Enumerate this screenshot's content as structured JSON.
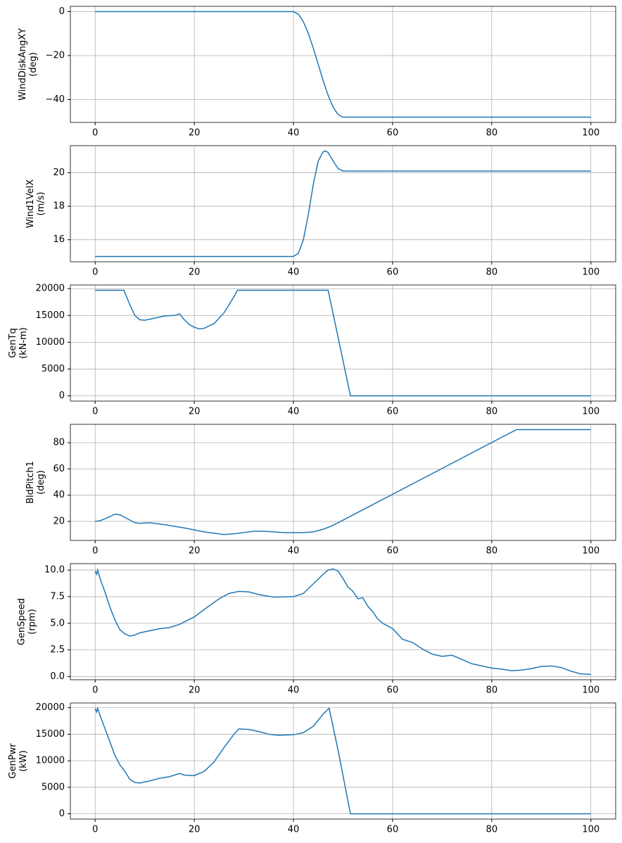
{
  "chart_data": [
    {
      "type": "line",
      "ylabel": [
        "WindDiskAngXY",
        "(deg)"
      ],
      "grid": true,
      "xlim": [
        -5,
        105
      ],
      "xticks": [
        0,
        20,
        40,
        60,
        80,
        100
      ],
      "ylim": [
        -50.4,
        2.4
      ],
      "yticks": [
        {
          "value": -40,
          "label": "−40"
        },
        {
          "value": -20,
          "label": "−20"
        },
        0
      ],
      "series": [
        {
          "color": "#1f77b4",
          "x": [
            0,
            40,
            41,
            42,
            43,
            44,
            45,
            46,
            47,
            48,
            49,
            50,
            100
          ],
          "values": [
            0,
            0,
            -1.17,
            -4.58,
            -9.89,
            -16.58,
            -24,
            -31.42,
            -38.11,
            -43.42,
            -46.83,
            -48,
            -48
          ]
        }
      ]
    },
    {
      "type": "line",
      "ylabel": [
        "Wind1VelX",
        "(m/s)"
      ],
      "grid": true,
      "xlim": [
        -5,
        105
      ],
      "xticks": [
        0,
        20,
        40,
        60,
        80,
        100
      ],
      "ylim": [
        14.685,
        21.615
      ],
      "yticks": [
        16,
        18,
        20
      ],
      "series": [
        {
          "color": "#1f77b4",
          "x": [
            0,
            40,
            41,
            42,
            43,
            44,
            45,
            46,
            46.5,
            47,
            48,
            49,
            50,
            100
          ],
          "values": [
            15,
            15,
            15.2,
            16,
            17.5,
            19.3,
            20.7,
            21.25,
            21.3,
            21.2,
            20.7,
            20.25,
            20.1,
            20.1
          ]
        }
      ]
    },
    {
      "type": "line",
      "ylabel": [
        "GenTq",
        "(kN-m)"
      ],
      "grid": true,
      "xlim": [
        -5,
        105
      ],
      "xticks": [
        0,
        20,
        40,
        60,
        80,
        100
      ],
      "ylim": [
        -985,
        20685
      ],
      "yticks": [
        0,
        5000,
        10000,
        15000,
        20000
      ],
      "series": [
        {
          "color": "#1f77b4",
          "x": [
            0,
            5.8,
            7,
            8,
            9,
            10,
            12,
            14,
            16,
            17,
            18,
            19,
            20,
            21,
            22,
            24,
            26,
            28,
            28.7,
            47,
            51.5,
            100
          ],
          "values": [
            19700,
            19700,
            17000,
            15000,
            14200,
            14100,
            14500,
            14900,
            15000,
            15300,
            14200,
            13300,
            12800,
            12500,
            12600,
            13500,
            15500,
            18500,
            19700,
            19700,
            0,
            0
          ]
        }
      ]
    },
    {
      "type": "line",
      "ylabel": [
        "BldPitch1",
        "(deg)"
      ],
      "grid": true,
      "xlim": [
        -5,
        105
      ],
      "xticks": [
        0,
        20,
        40,
        60,
        80,
        100
      ],
      "ylim": [
        5.5,
        94
      ],
      "yticks": [
        20,
        40,
        60,
        80
      ],
      "series": [
        {
          "color": "#1f77b4",
          "x": [
            0,
            1,
            2,
            4,
            5,
            6,
            8,
            9,
            11,
            14,
            18,
            22,
            26,
            28,
            30,
            32,
            34,
            36,
            38,
            42,
            44,
            46,
            48,
            85,
            100
          ],
          "values": [
            20,
            20.5,
            22,
            25.5,
            25,
            23,
            19,
            18.5,
            19,
            17.5,
            15,
            12,
            10,
            10.5,
            11.5,
            12.5,
            12.5,
            12,
            11.5,
            11.5,
            12,
            14,
            17,
            90,
            90
          ]
        }
      ]
    },
    {
      "type": "line",
      "ylabel": [
        "GenSpeed",
        "(rpm)"
      ],
      "grid": true,
      "xlim": [
        -5,
        105
      ],
      "xticks": [
        0,
        20,
        40,
        60,
        80,
        100
      ],
      "ylim": [
        -0.3,
        10.6
      ],
      "yticks": [
        {
          "value": 0,
          "label": "0.0"
        },
        2.5,
        {
          "value": 5,
          "label": "5.0"
        },
        7.5,
        {
          "value": 10,
          "label": "10.0"
        }
      ],
      "series": [
        {
          "color": "#1f77b4",
          "x": [
            0,
            0.3,
            0.5,
            1,
            2,
            3,
            4,
            5,
            6,
            7,
            8,
            9,
            11,
            13,
            15,
            17,
            20,
            22,
            25,
            27,
            29,
            31,
            33,
            36,
            40,
            42,
            44,
            46,
            47,
            48,
            49,
            50,
            51,
            52,
            53,
            54,
            55,
            56,
            57,
            58,
            60,
            61,
            62,
            64,
            66,
            68,
            70,
            72,
            74,
            76,
            78,
            80,
            82,
            84,
            86,
            88,
            90,
            92,
            94,
            96,
            98,
            100
          ],
          "values": [
            9.9,
            9.6,
            10,
            9.2,
            7.9,
            6.5,
            5.3,
            4.4,
            4.0,
            3.8,
            3.9,
            4.1,
            4.3,
            4.5,
            4.6,
            4.9,
            5.6,
            6.3,
            7.3,
            7.8,
            8.0,
            7.95,
            7.7,
            7.45,
            7.5,
            7.8,
            8.7,
            9.6,
            10.0,
            10.1,
            9.9,
            9.2,
            8.4,
            8.0,
            7.3,
            7.4,
            6.6,
            6.1,
            5.4,
            5.0,
            4.5,
            4.0,
            3.5,
            3.2,
            2.6,
            2.1,
            1.9,
            2.0,
            1.6,
            1.2,
            1.0,
            0.8,
            0.7,
            0.55,
            0.6,
            0.75,
            0.95,
            1.0,
            0.85,
            0.5,
            0.25,
            0.2
          ]
        }
      ]
    },
    {
      "type": "line",
      "ylabel": [
        "GenPwr",
        "(kW)"
      ],
      "grid": true,
      "xlim": [
        -5,
        105
      ],
      "xticks": [
        0,
        20,
        40,
        60,
        80,
        100
      ],
      "ylim": [
        -995,
        20895
      ],
      "yticks": [
        0,
        5000,
        10000,
        15000,
        20000
      ],
      "series": [
        {
          "color": "#1f77b4",
          "x": [
            0,
            0.3,
            0.5,
            1,
            2,
            3,
            4,
            5,
            6,
            7,
            8,
            9,
            11,
            13,
            15,
            17,
            18,
            20,
            22,
            24,
            26,
            28,
            29,
            31,
            33,
            35,
            37,
            40,
            42,
            44,
            46,
            47.2,
            49,
            51.5,
            100
          ],
          "values": [
            19800,
            19200,
            19900,
            18500,
            16000,
            13500,
            11000,
            9200,
            8000,
            6500,
            5900,
            5800,
            6200,
            6700,
            7000,
            7600,
            7300,
            7200,
            8000,
            9800,
            12500,
            15000,
            16000,
            15900,
            15500,
            15000,
            14800,
            14900,
            15300,
            16500,
            18800,
            19900,
            12000,
            0,
            0
          ]
        }
      ]
    }
  ]
}
